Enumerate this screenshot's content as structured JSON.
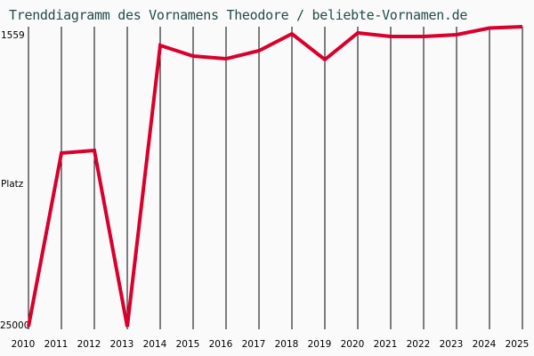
{
  "header": {
    "title": "Trenddiagramm des Vornamens Theodore / beliebte-Vornamen.de"
  },
  "axis": {
    "y_top": "1559",
    "y_mid": "Platz",
    "y_bottom": "25000"
  },
  "colors": {
    "line": "#d8002c",
    "grid": "#000000",
    "background": "#fafafa",
    "title": "#254a4a"
  },
  "chart_data": {
    "type": "line",
    "title": "Trenddiagramm des Vornamens Theodore / beliebte-Vornamen.de",
    "xlabel": "",
    "ylabel": "Platz",
    "y_inverted": true,
    "ylim": [
      25000,
      1559
    ],
    "grid": "vertical",
    "categories": [
      "2010",
      "2011",
      "2012",
      "2013",
      "2014",
      "2015",
      "2016",
      "2017",
      "2018",
      "2019",
      "2020",
      "2021",
      "2022",
      "2023",
      "2024",
      "2025"
    ],
    "series": [
      {
        "name": "Theodore",
        "values": [
          25000,
          11150,
          10935,
          25000,
          2550,
          3405,
          3620,
          2980,
          1630,
          3690,
          1560,
          1845,
          1845,
          1700,
          1170,
          1060
        ]
      }
    ]
  }
}
